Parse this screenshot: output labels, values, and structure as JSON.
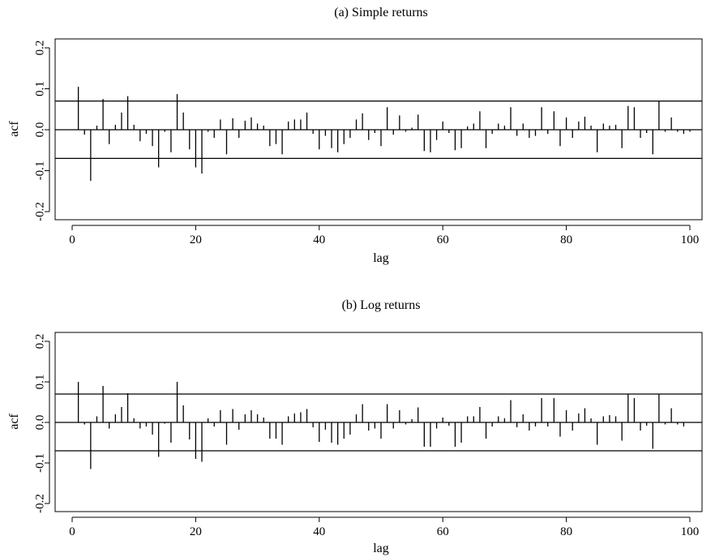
{
  "chart_data": [
    {
      "type": "bar",
      "title": "(a) Simple returns",
      "xlabel": "lag",
      "ylabel": "acf",
      "xlim": [
        0,
        101
      ],
      "ylim": [
        -0.2,
        0.2
      ],
      "xticks": [
        0,
        20,
        40,
        60,
        80,
        100
      ],
      "xtick_labels": [
        "0",
        "20",
        "40",
        "60",
        "80",
        "100"
      ],
      "yticks": [
        -0.2,
        -0.1,
        0.0,
        0.1,
        0.2
      ],
      "ytick_labels": [
        "-0.2",
        "-0.1",
        "0.0",
        "0.1",
        "0.2"
      ],
      "confidence_band": [
        0.07,
        -0.07
      ],
      "zero_line": true,
      "x": [
        1,
        2,
        3,
        4,
        5,
        6,
        7,
        8,
        9,
        10,
        11,
        12,
        13,
        14,
        15,
        16,
        17,
        18,
        19,
        20,
        21,
        22,
        23,
        24,
        25,
        26,
        27,
        28,
        29,
        30,
        31,
        32,
        33,
        34,
        35,
        36,
        37,
        38,
        39,
        40,
        41,
        42,
        43,
        44,
        45,
        46,
        47,
        48,
        49,
        50,
        51,
        52,
        53,
        54,
        55,
        56,
        57,
        58,
        59,
        60,
        61,
        62,
        63,
        64,
        65,
        66,
        67,
        68,
        69,
        70,
        71,
        72,
        73,
        74,
        75,
        76,
        77,
        78,
        79,
        80,
        81,
        82,
        83,
        84,
        85,
        86,
        87,
        88,
        89,
        90,
        91,
        92,
        93,
        94,
        95,
        96,
        97,
        98,
        99,
        100
      ],
      "values": [
        0.105,
        -0.012,
        -0.125,
        0.01,
        0.075,
        -0.035,
        0.012,
        0.042,
        0.082,
        0.012,
        -0.028,
        -0.01,
        -0.04,
        -0.092,
        -0.005,
        -0.055,
        0.087,
        0.042,
        -0.048,
        -0.092,
        -0.107,
        -0.005,
        -0.02,
        0.025,
        -0.06,
        0.028,
        -0.02,
        0.022,
        0.03,
        0.015,
        0.01,
        -0.04,
        -0.035,
        -0.06,
        0.02,
        0.025,
        0.025,
        0.042,
        -0.01,
        -0.048,
        -0.015,
        -0.045,
        -0.055,
        -0.035,
        -0.02,
        0.025,
        0.04,
        -0.025,
        -0.008,
        -0.04,
        0.055,
        -0.012,
        0.035,
        -0.005,
        0.005,
        0.037,
        -0.052,
        -0.055,
        -0.025,
        0.02,
        -0.008,
        -0.05,
        -0.045,
        0.008,
        0.015,
        0.045,
        -0.045,
        -0.01,
        0.015,
        0.01,
        0.055,
        -0.015,
        0.015,
        -0.02,
        -0.015,
        0.055,
        -0.01,
        0.045,
        -0.04,
        0.03,
        -0.02,
        0.02,
        0.032,
        0.01,
        -0.055,
        0.015,
        0.01,
        0.012,
        -0.045,
        0.058,
        0.055,
        -0.02,
        -0.008,
        -0.06,
        0.07,
        -0.005,
        0.03,
        -0.005,
        -0.01,
        -0.005
      ]
    },
    {
      "type": "bar",
      "title": "(b) Log returns",
      "xlabel": "lag",
      "ylabel": "acf",
      "xlim": [
        0,
        101
      ],
      "ylim": [
        -0.2,
        0.2
      ],
      "xticks": [
        0,
        20,
        40,
        60,
        80,
        100
      ],
      "xtick_labels": [
        "0",
        "20",
        "40",
        "60",
        "80",
        "100"
      ],
      "yticks": [
        -0.2,
        -0.1,
        0.0,
        0.1,
        0.2
      ],
      "ytick_labels": [
        "-0.2",
        "-0.1",
        "0.0",
        "0.1",
        "0.2"
      ],
      "confidence_band": [
        0.07,
        -0.07
      ],
      "zero_line": true,
      "x": [
        1,
        2,
        3,
        4,
        5,
        6,
        7,
        8,
        9,
        10,
        11,
        12,
        13,
        14,
        15,
        16,
        17,
        18,
        19,
        20,
        21,
        22,
        23,
        24,
        25,
        26,
        27,
        28,
        29,
        30,
        31,
        32,
        33,
        34,
        35,
        36,
        37,
        38,
        39,
        40,
        41,
        42,
        43,
        44,
        45,
        46,
        47,
        48,
        49,
        50,
        51,
        52,
        53,
        54,
        55,
        56,
        57,
        58,
        59,
        60,
        61,
        62,
        63,
        64,
        65,
        66,
        67,
        68,
        69,
        70,
        71,
        72,
        73,
        74,
        75,
        76,
        77,
        78,
        79,
        80,
        81,
        82,
        83,
        84,
        85,
        86,
        87,
        88,
        89,
        90,
        91,
        92,
        93,
        94,
        95,
        96,
        97,
        98,
        99
      ],
      "values": [
        0.1,
        -0.005,
        -0.115,
        0.015,
        0.09,
        -0.015,
        0.02,
        0.038,
        0.072,
        0.01,
        -0.015,
        -0.01,
        -0.03,
        -0.085,
        -0.003,
        -0.05,
        0.1,
        0.042,
        -0.042,
        -0.09,
        -0.097,
        0.01,
        -0.01,
        0.03,
        -0.055,
        0.033,
        -0.018,
        0.02,
        0.03,
        0.02,
        0.012,
        -0.04,
        -0.04,
        -0.055,
        0.015,
        0.022,
        0.025,
        0.033,
        -0.012,
        -0.048,
        -0.018,
        -0.05,
        -0.055,
        -0.04,
        -0.03,
        0.02,
        0.045,
        -0.02,
        -0.015,
        -0.04,
        0.045,
        -0.015,
        0.03,
        -0.005,
        0.008,
        0.037,
        -0.06,
        -0.06,
        -0.015,
        0.012,
        -0.008,
        -0.06,
        -0.05,
        0.015,
        0.015,
        0.038,
        -0.04,
        -0.01,
        0.015,
        0.01,
        0.055,
        -0.012,
        0.02,
        -0.02,
        -0.01,
        0.06,
        -0.01,
        0.06,
        -0.035,
        0.03,
        -0.02,
        0.022,
        0.035,
        0.01,
        -0.055,
        0.015,
        0.018,
        0.015,
        -0.045,
        0.07,
        0.06,
        -0.02,
        -0.008,
        -0.065,
        0.07,
        -0.005,
        0.035,
        -0.005,
        -0.01
      ]
    }
  ]
}
